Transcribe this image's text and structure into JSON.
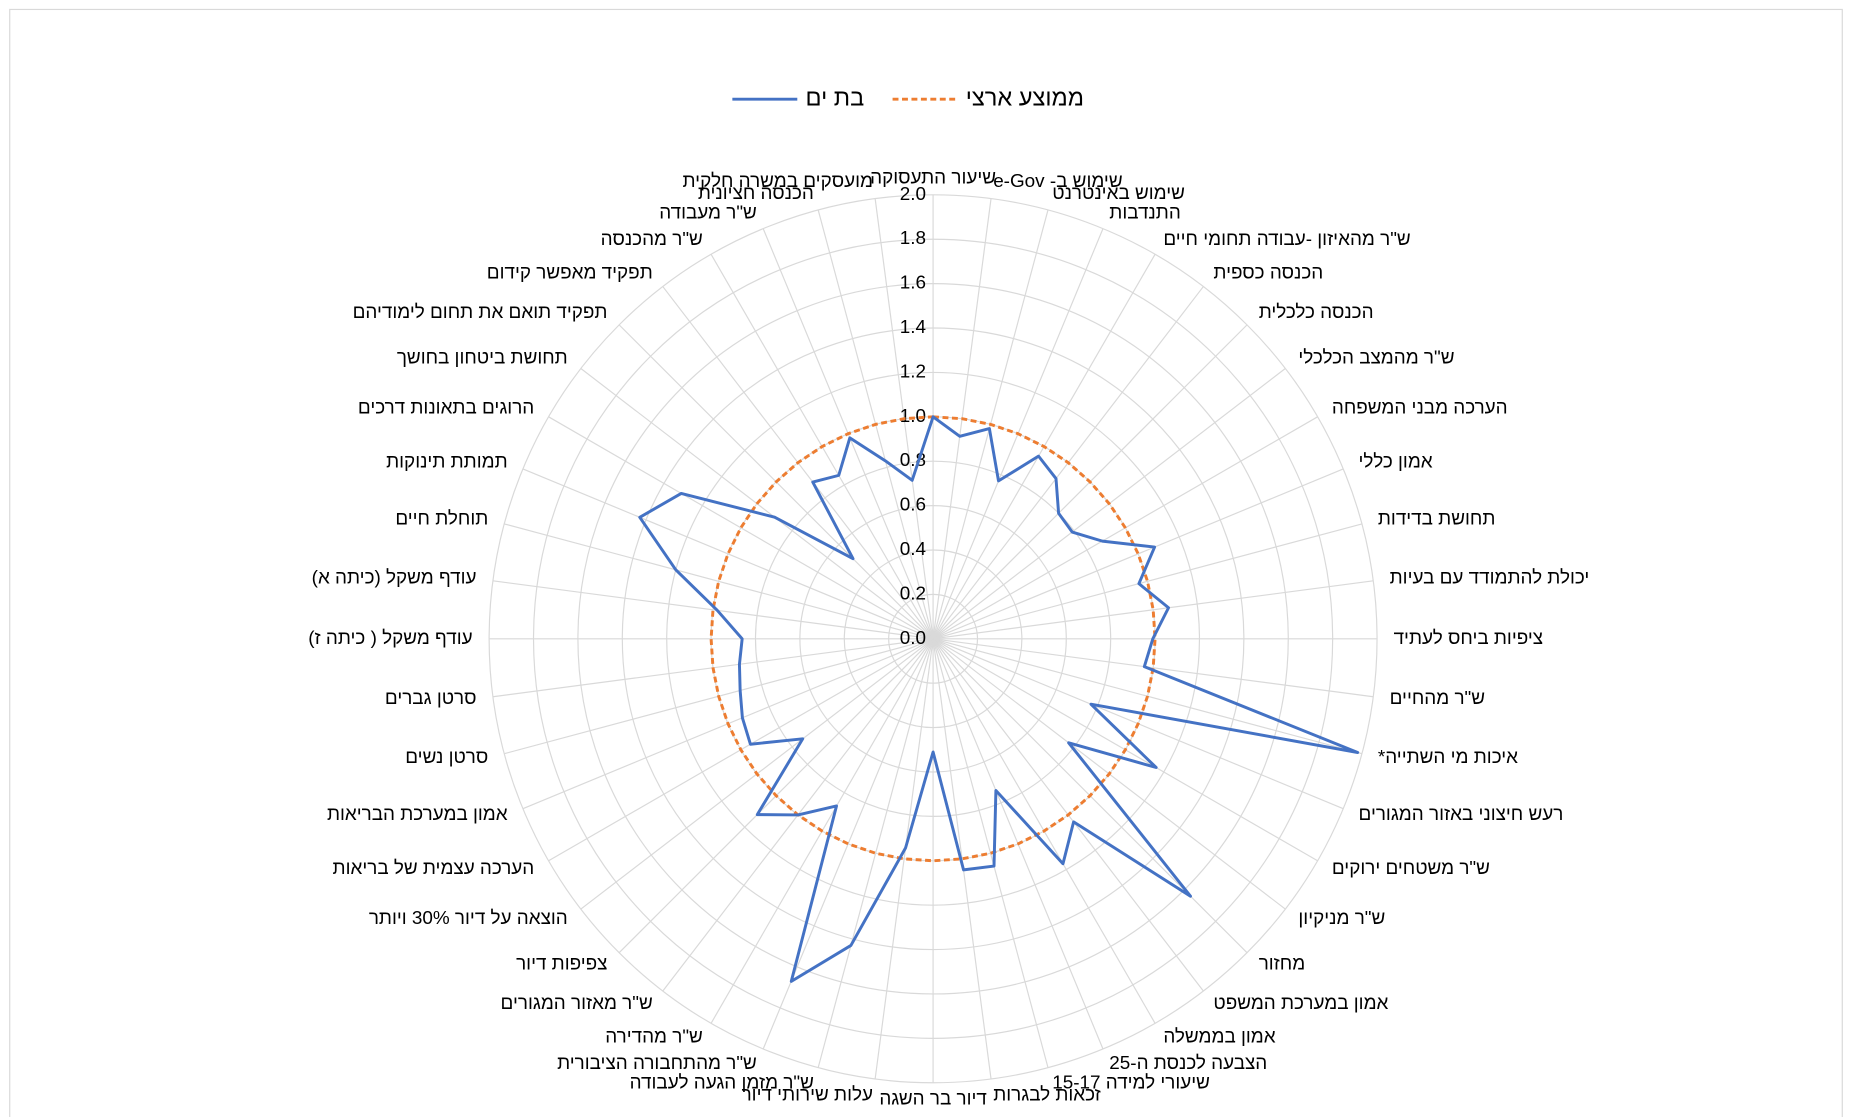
{
  "chart_data": {
    "type": "radar",
    "categories": [
      "שיעור התעסוקה",
      "שימוש ב- e-Gov",
      "שימוש באינטרנט",
      "התנדבות",
      "ש\"ר מהאיזון -עבודה תחומי חיים",
      "הכנסה כספית",
      "הכנסה כלכלית",
      "ש\"ר מהמצב הכלכלי",
      "הערכה מבני המשפחה",
      "אמון כללי",
      "תחושת בדידות",
      "יכולת להתמודד עם בעיות",
      "ציפיות ביחס לעתיד",
      "ש\"ר מהחיים",
      "איכות מי השתייה*",
      "רעש חיצוני באזור המגורים",
      "ש\"ר משטחים ירוקים",
      "ש\"ר מניקיון",
      "מחזור",
      "אמון במערכת המשפט",
      "אמון בממשלה",
      "הצבעה לכנסת ה-25",
      "שיעורי למידה 15-17",
      "זכאות לבגרות",
      "דיור בר השגה",
      "עלות שירותי דיור",
      "ש\"ר מזמן הגעה לעבודה",
      "ש\"ר מהתחבורה הציבורית",
      "ש\"ר מהדירה",
      "ש\"ר מאזור המגורים",
      "צפיפות דיור",
      "הוצאה על דיור 30% ויותר",
      "הערכה עצמית של בריאות",
      "אמון במערכת הבריאות",
      "סרטן נשים",
      "סרטן גברים",
      "עודף משקל ( כיתה ז)",
      "עודף משקל (כיתה א)",
      "תוחלת חיים",
      "תמותת תינוקות",
      "הרוגים בתאונות דרכים",
      "תחושת ביטחון בחושך",
      "תפקיד תואם את תחום לימודיהם",
      "תפקיד מאפשר קידום",
      "ש\"ר מהכנסה",
      "ש\"ר מעבודה",
      "הכנסה חציונית",
      "מועסקים במשרה חלקית"
    ],
    "series": [
      {
        "name": "בת ים",
        "color": "#4472c4",
        "dash": false,
        "values": [
          1.0,
          0.92,
          0.98,
          0.77,
          0.95,
          0.91,
          0.8,
          0.79,
          0.88,
          1.08,
          0.96,
          1.07,
          0.99,
          0.96,
          1.98,
          0.77,
          1.16,
          0.77,
          1.64,
          1.04,
          1.17,
          0.74,
          1.06,
          1.05,
          0.51,
          0.95,
          1.43,
          1.67,
          0.87,
          1.0,
          1.12,
          0.74,
          0.95,
          0.93,
          0.9,
          0.88,
          0.86,
          0.98,
          1.2,
          1.43,
          1.31,
          0.9,
          0.51,
          0.89,
          0.85,
          0.98,
          0.83,
          0.72
        ]
      },
      {
        "name": "ממוצע ארצי",
        "color": "#ed7d31",
        "dash": true,
        "values": [
          1,
          1,
          1,
          1,
          1,
          1,
          1,
          1,
          1,
          1,
          1,
          1,
          1,
          1,
          1,
          1,
          1,
          1,
          1,
          1,
          1,
          1,
          1,
          1,
          1,
          1,
          1,
          1,
          1,
          1,
          1,
          1,
          1,
          1,
          1,
          1,
          1,
          1,
          1,
          1,
          1,
          1,
          1,
          1,
          1,
          1,
          1,
          1
        ]
      }
    ],
    "ylim": [
      0,
      2
    ],
    "yticks": [
      {
        "value": 0,
        "label": "0.0"
      },
      0.2,
      0.4,
      0.6,
      0.8,
      {
        "value": 1,
        "label": "1.0"
      },
      1.2,
      1.4,
      1.6,
      1.8,
      {
        "value": 2,
        "label": "2.0"
      }
    ],
    "grid": true,
    "legend": "top"
  }
}
